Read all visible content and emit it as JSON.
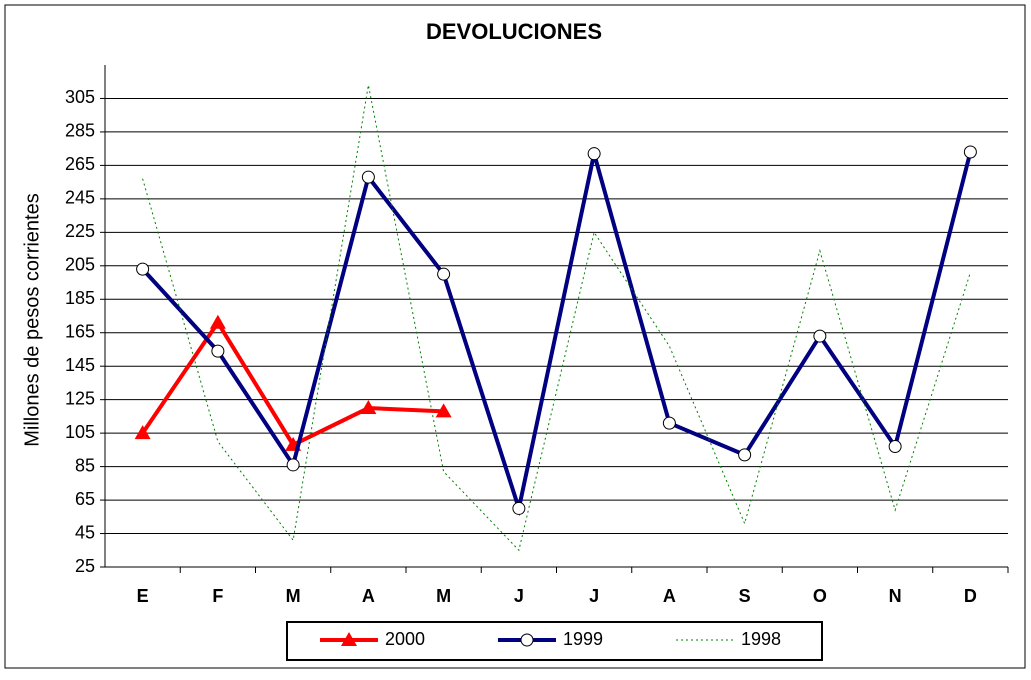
{
  "chart_data": {
    "type": "line",
    "title": "DEVOLUCIONES",
    "y_label": "Millones de pesos corrientes",
    "categories": [
      "E",
      "F",
      "M",
      "A",
      "M",
      "J",
      "J",
      "A",
      "S",
      "O",
      "N",
      "D"
    ],
    "series": [
      {
        "name": "2000",
        "color": "#ff0000",
        "marker": "triangle",
        "values": [
          105,
          171,
          98,
          120,
          118,
          null,
          null,
          null,
          null,
          null,
          null,
          null
        ]
      },
      {
        "name": "1999",
        "color": "#000080",
        "marker": "circle",
        "values": [
          203,
          154,
          86,
          258,
          200,
          60,
          272,
          111,
          92,
          163,
          97,
          273
        ]
      },
      {
        "name": "1998",
        "color": "#008000",
        "marker": "none",
        "dashed": true,
        "values": [
          257,
          100,
          41,
          313,
          82,
          35,
          225,
          157,
          51,
          214,
          59,
          201
        ]
      }
    ],
    "ylim": [
      25,
      325
    ],
    "yticks": [
      25,
      45,
      65,
      85,
      105,
      125,
      145,
      165,
      185,
      205,
      225,
      245,
      265,
      285,
      305
    ],
    "grid": true,
    "legend": "bottom"
  }
}
